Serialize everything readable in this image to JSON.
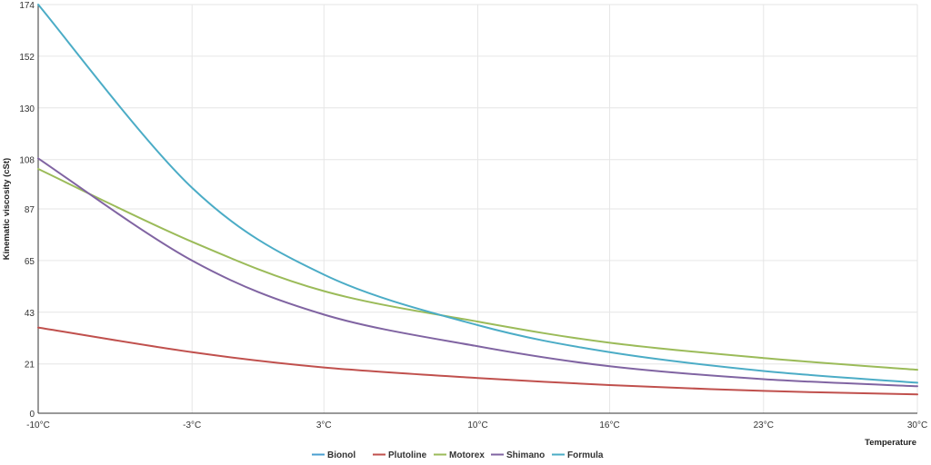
{
  "chart_data": {
    "type": "line",
    "title": "",
    "xlabel": "Temperature",
    "ylabel": "Kinematic viscosity (cSt)",
    "x_categories": [
      "-10°C",
      "-3°C",
      "3°C",
      "10°C",
      "16°C",
      "23°C",
      "30°C"
    ],
    "x_domain": [
      -10,
      30
    ],
    "x_ticks": [
      -10,
      -3,
      3,
      10,
      16,
      23,
      30
    ],
    "y_ticks": [
      0,
      21,
      43,
      65,
      87,
      108,
      130,
      152,
      174
    ],
    "ylim": [
      0,
      174
    ],
    "grid": true,
    "legend_position": "bottom",
    "series": [
      {
        "name": "Bionol",
        "color": "#4a9fd0",
        "x": [],
        "values": []
      },
      {
        "name": "Plutoline",
        "color": "#c0504d",
        "x": [
          -10,
          -3,
          3,
          10,
          16,
          23,
          30
        ],
        "values": [
          36.5,
          26,
          19.5,
          15,
          12,
          9.5,
          8
        ]
      },
      {
        "name": "Motorex",
        "color": "#9bbb59",
        "x": [
          -10,
          -3,
          3,
          10,
          16,
          23,
          30
        ],
        "values": [
          104,
          73,
          52,
          39,
          30,
          23.5,
          18.5
        ]
      },
      {
        "name": "Shimano",
        "color": "#8064a2",
        "x": [
          -10,
          -3,
          3,
          10,
          16,
          23,
          30
        ],
        "values": [
          108.5,
          65,
          42,
          28.5,
          20,
          14.5,
          11.5
        ]
      },
      {
        "name": "Formula",
        "color": "#4bacc6",
        "x": [
          -10,
          -3,
          3,
          10,
          16,
          23,
          30
        ],
        "values": [
          174,
          96,
          59,
          37.5,
          26,
          18,
          13
        ]
      }
    ]
  }
}
